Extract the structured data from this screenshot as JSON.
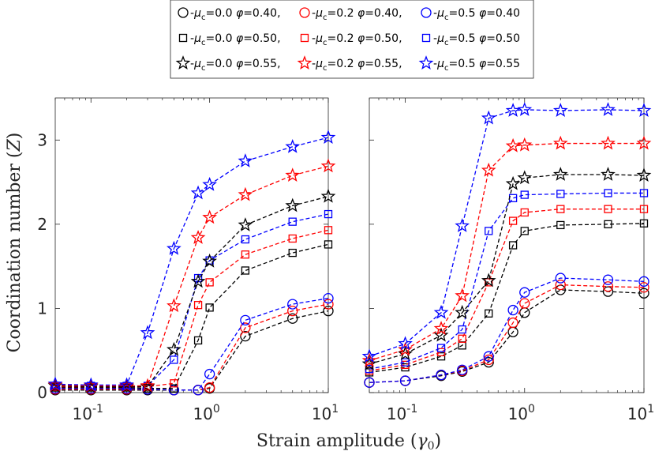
{
  "chart_data": [
    {
      "type": "line",
      "panel": "left",
      "title": "",
      "xlabel": "Strain amplitude (γ0)",
      "ylabel": "Coordination number (Z)",
      "xscale": "log",
      "xlim": [
        0.05,
        10
      ],
      "ylim": [
        0,
        3.5
      ],
      "x": [
        0.05,
        0.1,
        0.2,
        0.3,
        0.5,
        0.8,
        1,
        2,
        5,
        10
      ],
      "xtick_labels": [
        "10",
        "10",
        "10"
      ],
      "xtick_exponents": [
        "-1",
        "0",
        "1"
      ],
      "ytick_labels": [
        "0",
        "1",
        "2",
        "3"
      ],
      "grid": false,
      "series": [
        {
          "name": "μc=0.0 φ=0.40",
          "color": "#000000",
          "marker": "circle",
          "values": [
            0.03,
            0.03,
            0.03,
            0.03,
            0.03,
            0.03,
            0.05,
            0.67,
            0.88,
            0.97
          ]
        },
        {
          "name": "μc=0.2 φ=0.40",
          "color": "#ff0000",
          "marker": "circle",
          "values": [
            0.04,
            0.04,
            0.04,
            0.04,
            0.03,
            0.03,
            0.06,
            0.77,
            0.97,
            1.05
          ]
        },
        {
          "name": "μc=0.5 φ=0.40",
          "color": "#0000ff",
          "marker": "circle",
          "values": [
            0.05,
            0.05,
            0.05,
            0.04,
            0.03,
            0.03,
            0.22,
            0.86,
            1.05,
            1.12
          ]
        },
        {
          "name": "μc=0.0 φ=0.50",
          "color": "#000000",
          "marker": "square",
          "values": [
            0.06,
            0.06,
            0.06,
            0.05,
            0.05,
            0.62,
            1.01,
            1.45,
            1.66,
            1.76
          ]
        },
        {
          "name": "μc=0.2 φ=0.50",
          "color": "#ff0000",
          "marker": "square",
          "values": [
            0.07,
            0.07,
            0.07,
            0.07,
            0.11,
            1.04,
            1.31,
            1.64,
            1.83,
            1.93
          ]
        },
        {
          "name": "μc=0.5 φ=0.50",
          "color": "#0000ff",
          "marker": "square",
          "values": [
            0.08,
            0.08,
            0.08,
            0.08,
            0.39,
            1.36,
            1.57,
            1.82,
            2.03,
            2.12
          ]
        },
        {
          "name": "μc=0.0 φ=0.55",
          "color": "#000000",
          "marker": "star",
          "values": [
            0.08,
            0.07,
            0.07,
            0.07,
            0.51,
            1.32,
            1.56,
            1.99,
            2.22,
            2.33
          ]
        },
        {
          "name": "μc=0.2 φ=0.55",
          "color": "#ff0000",
          "marker": "star",
          "values": [
            0.09,
            0.08,
            0.08,
            0.08,
            1.03,
            1.84,
            2.08,
            2.35,
            2.58,
            2.69
          ]
        },
        {
          "name": "μc=0.5 φ=0.55",
          "color": "#0000ff",
          "marker": "star",
          "values": [
            0.1,
            0.09,
            0.09,
            0.71,
            1.71,
            2.37,
            2.47,
            2.75,
            2.92,
            3.03
          ]
        }
      ]
    },
    {
      "type": "line",
      "panel": "right",
      "title": "",
      "xlabel": "",
      "ylabel": "",
      "xscale": "log",
      "xlim": [
        0.05,
        10
      ],
      "ylim": [
        0,
        3.5
      ],
      "x": [
        0.05,
        0.1,
        0.2,
        0.3,
        0.5,
        0.8,
        1,
        2,
        5,
        10
      ],
      "xtick_labels": [
        "10",
        "10",
        "10"
      ],
      "xtick_exponents": [
        "-1",
        "0",
        "1"
      ],
      "grid": false,
      "series": [
        {
          "name": "μc=0.0 φ=0.40",
          "color": "#000000",
          "marker": "circle",
          "values": [
            0.12,
            0.14,
            0.2,
            0.25,
            0.36,
            0.72,
            0.95,
            1.22,
            1.2,
            1.18
          ]
        },
        {
          "name": "μc=0.2 φ=0.40",
          "color": "#ff0000",
          "marker": "circle",
          "values": [
            0.12,
            0.14,
            0.21,
            0.26,
            0.39,
            0.83,
            1.06,
            1.28,
            1.26,
            1.25
          ]
        },
        {
          "name": "μc=0.5 φ=0.40",
          "color": "#0000ff",
          "marker": "circle",
          "values": [
            0.12,
            0.14,
            0.21,
            0.27,
            0.43,
            0.98,
            1.19,
            1.36,
            1.34,
            1.32
          ]
        },
        {
          "name": "μc=0.0 φ=0.50",
          "color": "#000000",
          "marker": "square",
          "values": [
            0.24,
            0.3,
            0.43,
            0.56,
            0.94,
            1.75,
            1.92,
            1.99,
            2.0,
            2.01
          ]
        },
        {
          "name": "μc=0.2 φ=0.50",
          "color": "#ff0000",
          "marker": "square",
          "values": [
            0.26,
            0.33,
            0.48,
            0.64,
            1.31,
            2.04,
            2.14,
            2.18,
            2.18,
            2.18
          ]
        },
        {
          "name": "μc=0.5 φ=0.50",
          "color": "#0000ff",
          "marker": "square",
          "values": [
            0.28,
            0.36,
            0.53,
            0.75,
            1.92,
            2.31,
            2.35,
            2.36,
            2.37,
            2.37
          ]
        },
        {
          "name": "μc=0.0 φ=0.55",
          "color": "#000000",
          "marker": "star",
          "values": [
            0.34,
            0.46,
            0.68,
            0.95,
            1.33,
            2.48,
            2.55,
            2.59,
            2.59,
            2.58
          ]
        },
        {
          "name": "μc=0.2 φ=0.55",
          "color": "#ff0000",
          "marker": "star",
          "values": [
            0.38,
            0.51,
            0.76,
            1.15,
            2.64,
            2.93,
            2.94,
            2.96,
            2.96,
            2.96
          ]
        },
        {
          "name": "μc=0.5 φ=0.55",
          "color": "#0000ff",
          "marker": "star",
          "values": [
            0.43,
            0.58,
            0.95,
            1.98,
            3.26,
            3.35,
            3.36,
            3.35,
            3.36,
            3.35
          ]
        }
      ]
    }
  ],
  "legend": {
    "placement": "top-center",
    "entries": [
      {
        "label": "-μc=0.0 φ=0.40,",
        "color": "#000000",
        "marker": "circle"
      },
      {
        "label": "-μc=0.2 φ=0.40,",
        "color": "#ff0000",
        "marker": "circle"
      },
      {
        "label": "-μc=0.5 φ=0.40",
        "color": "#0000ff",
        "marker": "circle"
      },
      {
        "label": "-μc=0.0 φ=0.50,",
        "color": "#000000",
        "marker": "square"
      },
      {
        "label": "-μc=0.2 φ=0.50,",
        "color": "#ff0000",
        "marker": "square"
      },
      {
        "label": "-μc=0.5 φ=0.50",
        "color": "#0000ff",
        "marker": "square"
      },
      {
        "label": "-μc=0.0 φ=0.55,",
        "color": "#000000",
        "marker": "star"
      },
      {
        "label": "-μc=0.2 φ=0.55,",
        "color": "#ff0000",
        "marker": "star"
      },
      {
        "label": "-μc=0.5 φ=0.55",
        "color": "#0000ff",
        "marker": "star"
      }
    ]
  },
  "figure": {
    "xlabel": "Strain amplitude (γ0)",
    "ylabel": "Coordination number (Z)",
    "xlabel_parts": {
      "text": "Strain amplitude (",
      "symbol": "γ",
      "sub": "0",
      "close": ")"
    },
    "ylabel_parts": {
      "text": "Coordination number (",
      "symbol": "Z",
      "close": ")"
    }
  }
}
